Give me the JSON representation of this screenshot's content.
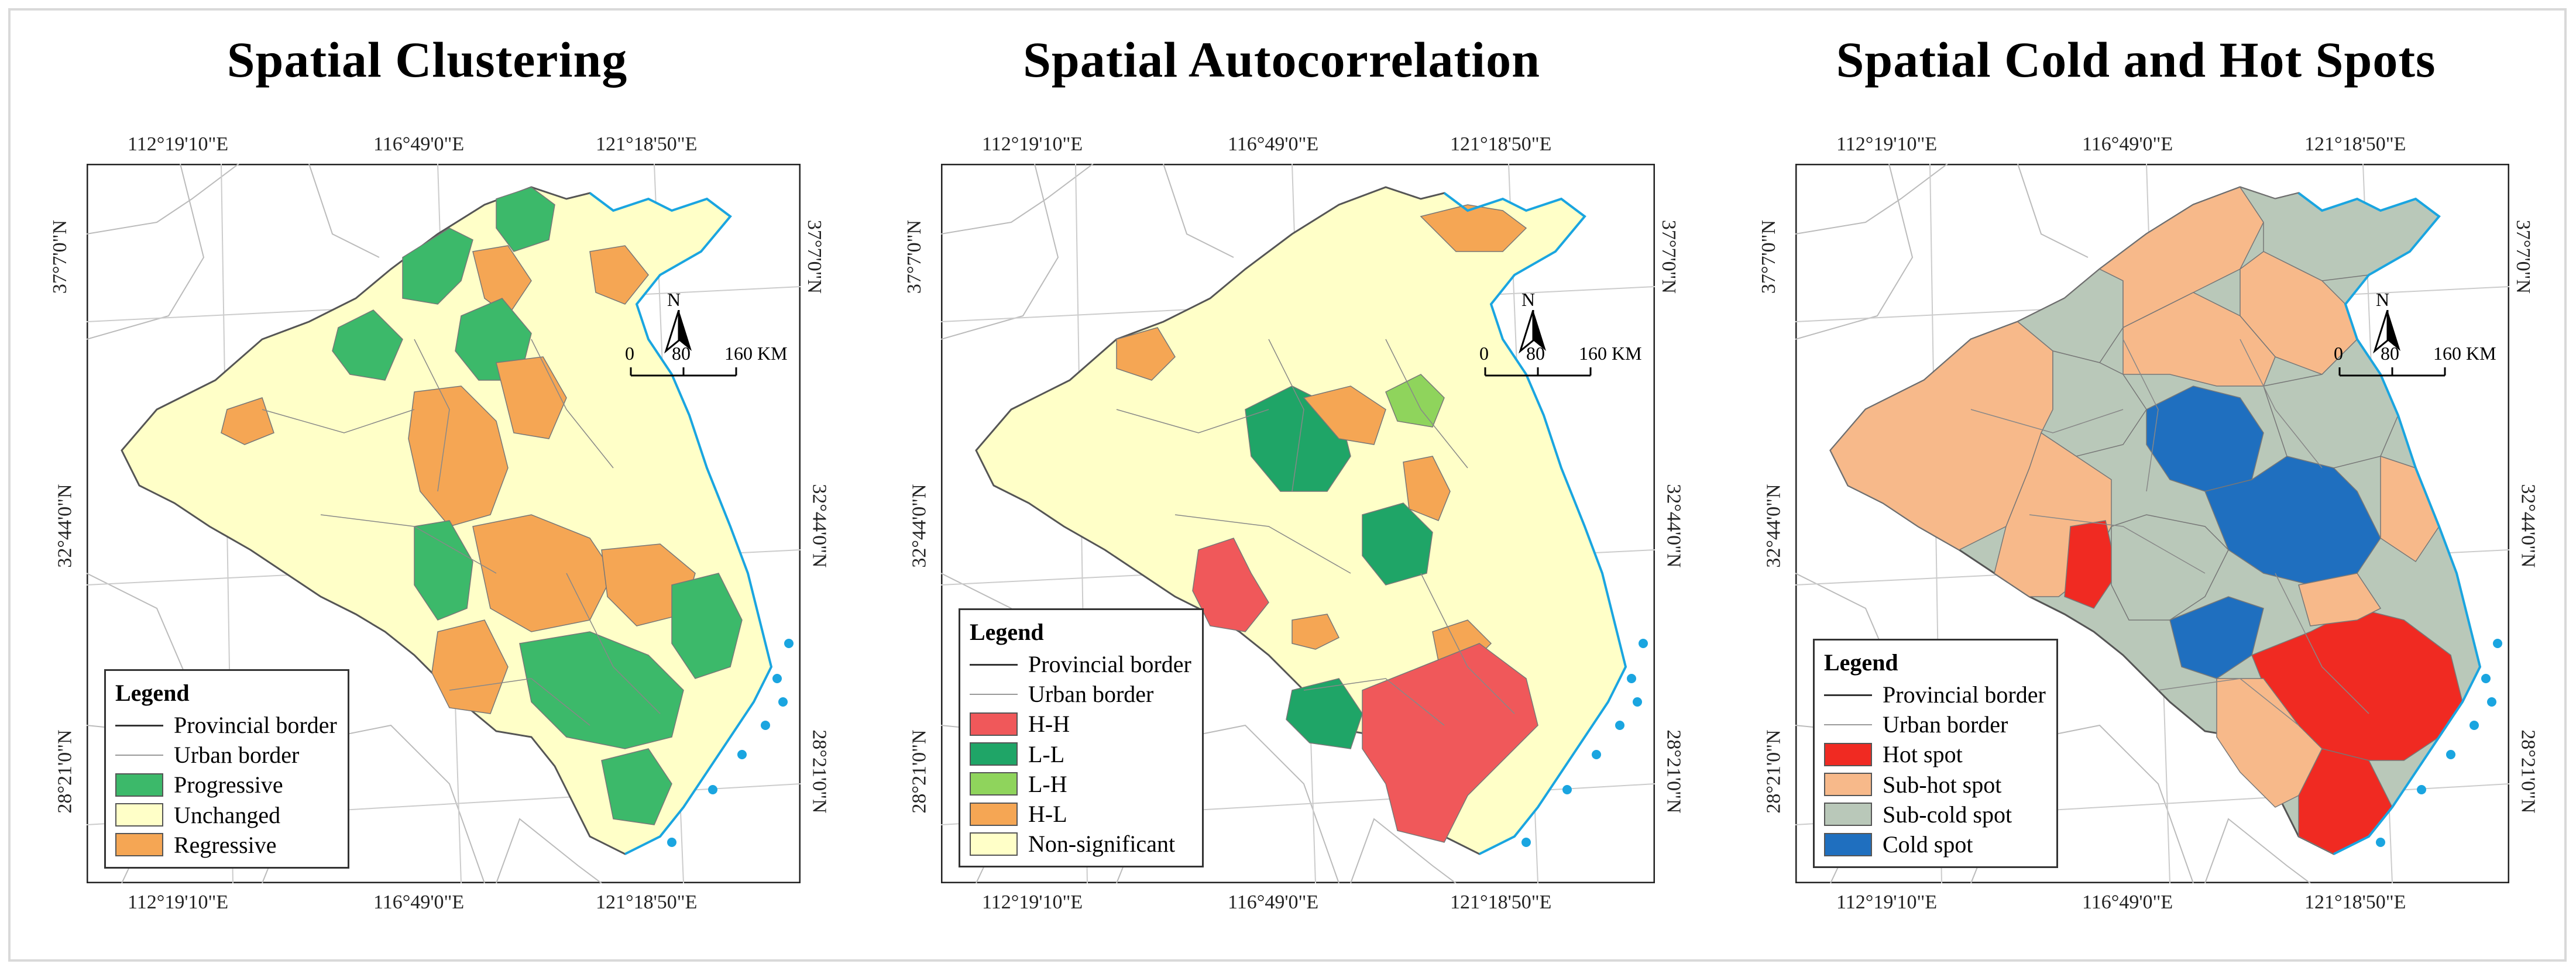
{
  "panels": [
    {
      "title": "Spatial Clustering",
      "ticks": {
        "top": [
          "112°19'10\"E",
          "116°49'0\"E",
          "121°18'50\"E"
        ],
        "bottom": [
          "112°19'10\"E",
          "116°49'0\"E",
          "121°18'50\"E"
        ],
        "left": [
          "37°7'0\"N",
          "32°44'0\"N",
          "28°21'0\"N"
        ],
        "right": [
          "37°7'0\"N",
          "32°44'0\"N",
          "28°21'0\"N"
        ]
      },
      "legend": {
        "title": "Legend",
        "items": [
          {
            "type": "line",
            "label": "Provincial border"
          },
          {
            "type": "thin",
            "label": "Urban border"
          },
          {
            "type": "fill",
            "label": "Progressive",
            "color": "#3cb96a"
          },
          {
            "type": "fill",
            "label": "Unchanged",
            "color": "#ffffc8"
          },
          {
            "type": "fill",
            "label": "Regressive",
            "color": "#f5a654"
          }
        ]
      },
      "scale": {
        "north": "N",
        "zero": "0",
        "mid": "80",
        "end": "160 KM"
      }
    },
    {
      "title": "Spatial Autocorrelation",
      "ticks": {
        "top": [
          "112°19'10\"E",
          "116°49'0\"E",
          "121°18'50\"E"
        ],
        "bottom": [
          "112°19'10\"E",
          "116°49'0\"E",
          "121°18'50\"E"
        ],
        "left": [
          "37°7'0\"N",
          "32°44'0\"N",
          "28°21'0\"N"
        ],
        "right": [
          "37°7'0\"N",
          "32°44'0\"N",
          "28°21'0\"N"
        ]
      },
      "legend": {
        "title": "Legend",
        "items": [
          {
            "type": "line",
            "label": "Provincial border"
          },
          {
            "type": "thin",
            "label": "Urban border"
          },
          {
            "type": "fill",
            "label": "H-H",
            "color": "#f0585a"
          },
          {
            "type": "fill",
            "label": "L-L",
            "color": "#1fa567"
          },
          {
            "type": "fill",
            "label": "L-H",
            "color": "#8fd45c"
          },
          {
            "type": "fill",
            "label": "H-L",
            "color": "#f5a654"
          },
          {
            "type": "fill",
            "label": "Non-significant",
            "color": "#ffffc8"
          }
        ]
      },
      "scale": {
        "north": "N",
        "zero": "0",
        "mid": "80",
        "end": "160 KM"
      }
    },
    {
      "title": "Spatial Cold and Hot Spots",
      "ticks": {
        "top": [
          "112°19'10\"E",
          "116°49'0\"E",
          "121°18'50\"E"
        ],
        "bottom": [
          "112°19'10\"E",
          "116°49'0\"E",
          "121°18'50\"E"
        ],
        "left": [
          "37°7'0\"N",
          "32°44'0\"N",
          "28°21'0\"N"
        ],
        "right": [
          "37°7'0\"N",
          "32°44'0\"N",
          "28°21'0\"N"
        ]
      },
      "legend": {
        "title": "Legend",
        "items": [
          {
            "type": "line",
            "label": "Provincial border"
          },
          {
            "type": "thin",
            "label": "Urban border"
          },
          {
            "type": "fill",
            "label": "Hot spot",
            "color": "#f02a22"
          },
          {
            "type": "fill",
            "label": "Sub-hot spot",
            "color": "#f7b98a"
          },
          {
            "type": "fill",
            "label": "Sub-cold spot",
            "color": "#b9c8b9"
          },
          {
            "type": "fill",
            "label": "Cold spot",
            "color": "#1f6fbf"
          }
        ]
      },
      "scale": {
        "north": "N",
        "zero": "0",
        "mid": "80",
        "end": "160 KM"
      }
    }
  ]
}
